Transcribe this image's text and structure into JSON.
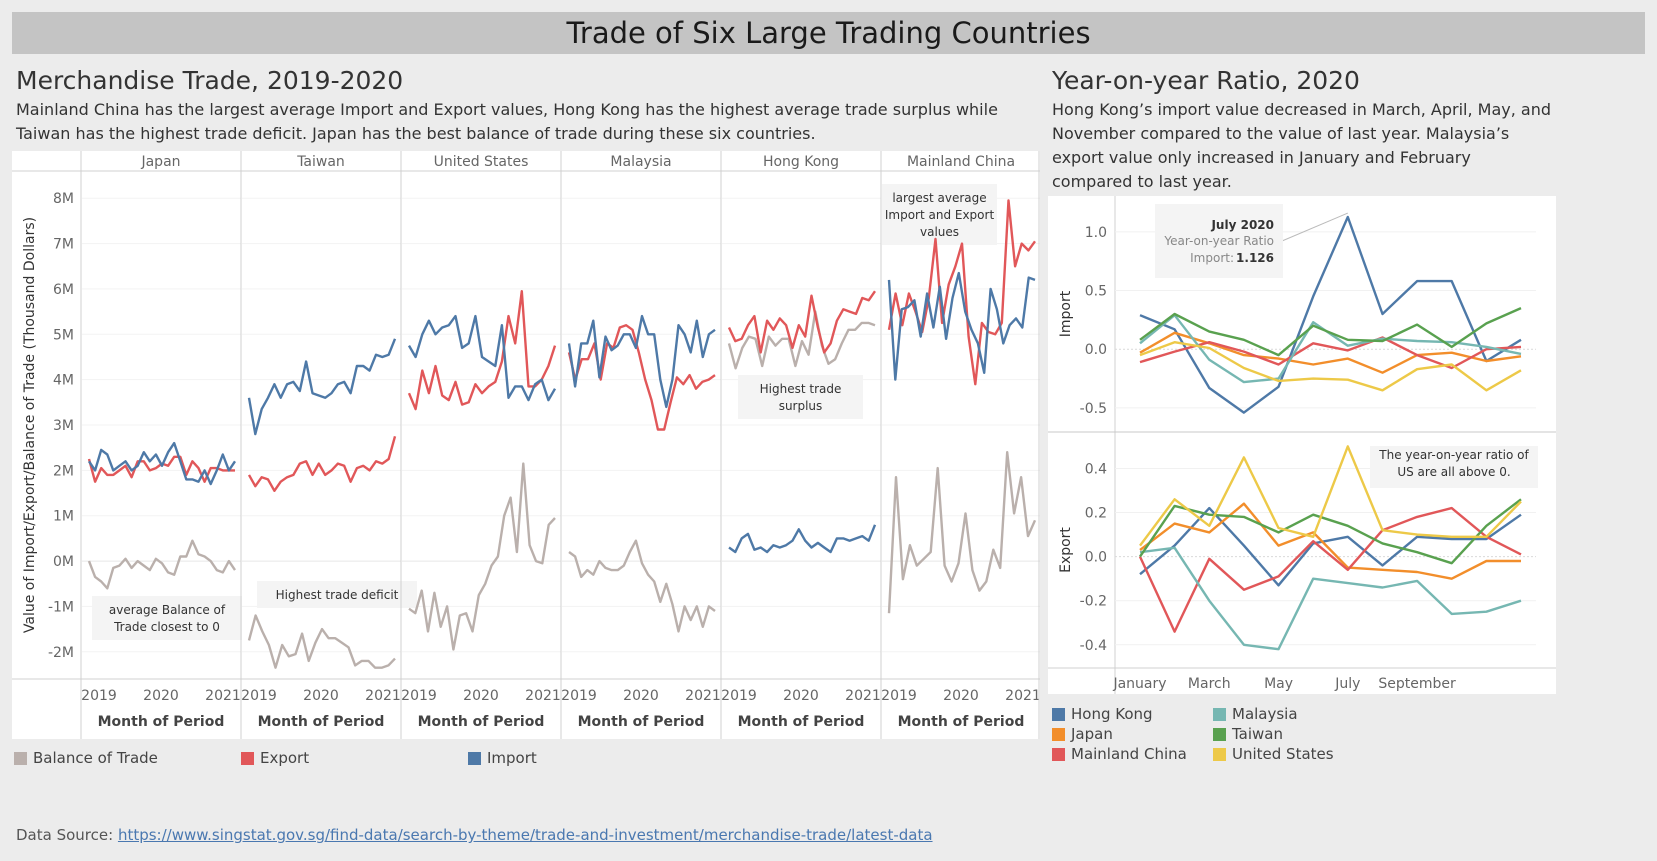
{
  "page": {
    "title": "Trade of Six Large Trading Countries",
    "left_title": "Merchandise Trade, 2019-2020",
    "left_desc": "Mainland China has the largest average Import and Export values, Hong Kong has the highest average trade surplus while Taiwan has the highest trade deficit. Japan has the best balance of trade during these six countries.",
    "right_title": "Year-on-year Ratio, 2020",
    "right_desc": "Hong Kong’s import value decreased in March, April, May, and November compared to the value of last year. Malaysia’s export value only increased in January and February compared to last year.",
    "source_label": "Data Source:",
    "source_url": "https://www.singstat.gov.sg/find-data/search-by-theme/trade-and-investment/merchandise-trade/latest-data"
  },
  "legend_left": [
    {
      "label": "Balance of Trade",
      "color": "#bab0ac"
    },
    {
      "label": "Export",
      "color": "#e15759"
    },
    {
      "label": "Import",
      "color": "#4e79a7"
    }
  ],
  "legend_right": [
    {
      "label": "Hong Kong",
      "color": "#4e79a7"
    },
    {
      "label": "Japan",
      "color": "#f28e2b"
    },
    {
      "label": "Mainland China",
      "color": "#e15759"
    },
    {
      "label": "Malaysia",
      "color": "#76b7b2"
    },
    {
      "label": "Taiwan",
      "color": "#59a14f"
    },
    {
      "label": "United States",
      "color": "#edc948"
    }
  ],
  "chart_data": [
    {
      "type": "line",
      "title": "Merchandise Trade, 2019-2020",
      "ylabel": "Value of Import/Export/Balance of Trade (Thousand Dollars)",
      "xlabel": "Month of Period",
      "ylim": [
        -2.6,
        8.6
      ],
      "yticks": [
        "8M",
        "7M",
        "6M",
        "5M",
        "4M",
        "3M",
        "2M",
        "1M",
        "0M",
        "-1M",
        "-2M"
      ],
      "ytick_values": [
        8,
        7,
        6,
        5,
        4,
        3,
        2,
        1,
        0,
        -1,
        -2
      ],
      "xticks": [
        "2019",
        "2020",
        "2021"
      ],
      "series_colors": {
        "Import": "#4e79a7",
        "Export": "#e15759",
        "Balance of Trade": "#bab0ac"
      },
      "panels": [
        {
          "name": "Japan",
          "annotation": "average Balance of Trade closest to 0",
          "Import": [
            2.2,
            2.0,
            2.45,
            2.35,
            2.0,
            2.1,
            2.2,
            2.0,
            2.1,
            2.4,
            2.2,
            2.35,
            2.1,
            2.4,
            2.6,
            2.2,
            1.8,
            1.8,
            1.75,
            2.0,
            1.7,
            2.0,
            2.35,
            2.0,
            2.2
          ],
          "Export": [
            2.25,
            1.75,
            2.05,
            1.9,
            1.9,
            2.0,
            2.1,
            1.85,
            2.2,
            2.2,
            2.0,
            2.05,
            2.15,
            2.1,
            2.3,
            2.3,
            1.9,
            2.2,
            2.05,
            1.75,
            2.05,
            2.05,
            2.0,
            2.0,
            2.0
          ],
          "Balance of Trade": [
            0.0,
            -0.35,
            -0.45,
            -0.6,
            -0.15,
            -0.1,
            0.05,
            -0.15,
            0.0,
            -0.1,
            -0.2,
            0.05,
            -0.05,
            -0.25,
            -0.3,
            0.1,
            0.1,
            0.45,
            0.15,
            0.1,
            0.0,
            -0.2,
            -0.25,
            0.0,
            -0.2
          ]
        },
        {
          "name": "Taiwan",
          "annotation": "Highest trade deficit",
          "Import": [
            3.6,
            2.8,
            3.35,
            3.6,
            3.9,
            3.6,
            3.9,
            3.95,
            3.75,
            4.4,
            3.7,
            3.65,
            3.6,
            3.7,
            3.9,
            3.95,
            3.7,
            4.3,
            4.3,
            4.2,
            4.55,
            4.5,
            4.55,
            4.9
          ],
          "Export": [
            1.9,
            1.65,
            1.85,
            1.8,
            1.55,
            1.75,
            1.85,
            1.9,
            2.15,
            2.2,
            1.9,
            2.15,
            1.9,
            2.0,
            2.15,
            2.1,
            1.75,
            2.05,
            2.1,
            2.0,
            2.2,
            2.15,
            2.25,
            2.75
          ],
          "Balance of Trade": [
            -1.75,
            -1.2,
            -1.55,
            -1.85,
            -2.35,
            -1.85,
            -2.1,
            -2.05,
            -1.6,
            -2.2,
            -1.8,
            -1.5,
            -1.7,
            -1.7,
            -1.8,
            -1.9,
            -2.3,
            -2.2,
            -2.2,
            -2.35,
            -2.35,
            -2.3,
            -2.15
          ]
        },
        {
          "name": "United States",
          "annotation": "",
          "Import": [
            4.75,
            4.5,
            5.0,
            5.3,
            5.0,
            5.15,
            5.2,
            5.4,
            4.7,
            4.8,
            5.4,
            4.5,
            4.4,
            4.3,
            5.2,
            3.6,
            3.85,
            3.85,
            3.55,
            3.9,
            4.0,
            3.55,
            3.8
          ],
          "Export": [
            3.7,
            3.35,
            4.2,
            3.7,
            4.3,
            3.65,
            3.55,
            3.95,
            3.45,
            3.5,
            3.9,
            3.7,
            3.85,
            3.95,
            4.4,
            5.4,
            4.8,
            5.95,
            3.85,
            3.85,
            4.0,
            4.3,
            4.75
          ],
          "Balance of Trade": [
            -1.05,
            -1.15,
            -0.65,
            -1.55,
            -0.7,
            -1.45,
            -1.0,
            -1.95,
            -1.2,
            -1.15,
            -1.55,
            -0.75,
            -0.5,
            -0.1,
            0.1,
            1.0,
            1.4,
            0.2,
            2.15,
            0.35,
            0.0,
            -0.05,
            0.8,
            0.95
          ]
        },
        {
          "name": "Malaysia",
          "annotation": "",
          "Import": [
            4.8,
            3.85,
            4.8,
            4.8,
            5.3,
            4.05,
            4.95,
            4.65,
            4.75,
            5.0,
            5.0,
            4.7,
            5.4,
            5.0,
            5.0,
            4.0,
            3.4,
            4.0,
            5.2,
            5.0,
            4.6,
            5.3,
            4.5,
            5.0,
            5.1
          ],
          "Export": [
            4.6,
            4.0,
            4.45,
            4.45,
            4.8,
            4.0,
            4.8,
            4.7,
            5.15,
            5.2,
            5.1,
            4.6,
            4.0,
            3.55,
            2.9,
            2.9,
            3.5,
            4.05,
            3.9,
            4.1,
            3.8,
            3.95,
            4.0,
            4.1
          ],
          "Balance of Trade": [
            0.2,
            0.1,
            -0.35,
            -0.2,
            -0.3,
            0.0,
            -0.15,
            -0.2,
            -0.2,
            -0.1,
            0.2,
            0.45,
            -0.05,
            -0.3,
            -0.45,
            -0.9,
            -0.5,
            -0.95,
            -1.55,
            -1.0,
            -1.3,
            -1.0,
            -1.45,
            -1.0,
            -1.1
          ]
        },
        {
          "name": "Hong Kong",
          "annotation": "Highest trade surplus",
          "Import": [
            0.3,
            0.2,
            0.5,
            0.6,
            0.25,
            0.3,
            0.2,
            0.35,
            0.3,
            0.35,
            0.45,
            0.7,
            0.45,
            0.3,
            0.4,
            0.3,
            0.2,
            0.5,
            0.5,
            0.45,
            0.5,
            0.55,
            0.45,
            0.8
          ],
          "Export": [
            5.15,
            4.85,
            4.9,
            5.2,
            5.4,
            4.6,
            5.3,
            5.1,
            5.35,
            5.2,
            4.7,
            5.2,
            4.95,
            5.85,
            5.15,
            4.6,
            4.8,
            5.3,
            5.55,
            5.5,
            5.45,
            5.8,
            5.75,
            5.95
          ],
          "Balance of Trade": [
            4.8,
            4.25,
            4.7,
            4.95,
            4.9,
            4.3,
            4.95,
            4.75,
            4.9,
            4.9,
            4.3,
            4.85,
            4.55,
            5.5,
            4.75,
            4.35,
            4.45,
            4.8,
            5.1,
            5.1,
            5.25,
            5.25,
            5.2
          ]
        },
        {
          "name": "Mainland China",
          "annotation": "largest average Import and Export values",
          "Import": [
            6.2,
            4.0,
            5.55,
            5.6,
            5.75,
            4.95,
            5.9,
            5.15,
            6.05,
            4.9,
            5.8,
            6.35,
            5.5,
            5.1,
            4.8,
            4.15,
            6.0,
            5.55,
            4.8,
            5.2,
            5.35,
            5.15,
            6.25,
            6.2
          ],
          "Export": [
            5.1,
            5.9,
            5.2,
            5.9,
            5.5,
            5.05,
            5.8,
            7.1,
            5.25,
            6.1,
            6.5,
            7.0,
            4.95,
            3.9,
            5.25,
            5.05,
            5.0,
            5.25,
            7.95,
            6.5,
            7.0,
            6.85,
            7.05
          ],
          "Balance of Trade": [
            -1.15,
            1.85,
            -0.4,
            0.35,
            -0.1,
            0.05,
            0.2,
            2.05,
            -0.1,
            -0.45,
            -0.05,
            1.05,
            -0.2,
            -0.65,
            -0.45,
            0.25,
            -0.15,
            2.4,
            1.05,
            1.85,
            0.55,
            0.9
          ]
        }
      ]
    },
    {
      "type": "line",
      "title": "Year-on-year Ratio, 2020",
      "x": [
        "January",
        "February",
        "March",
        "April",
        "May",
        "June",
        "July",
        "August",
        "September",
        "October",
        "November",
        "December"
      ],
      "xticks_shown": [
        "January",
        "March",
        "May",
        "July",
        "September"
      ],
      "tooltip": {
        "title": "July 2020",
        "subtitle": "Year-on-year Ratio",
        "label": "Import:",
        "value": "1.126"
      },
      "annotation": "The year-on-year ratio of US are all above 0.",
      "panels": [
        {
          "name": "Import",
          "ylim": [
            -0.62,
            1.22
          ],
          "yticks": [
            "1.0",
            "0.5",
            "0.0",
            "-0.5"
          ],
          "ytick_values": [
            1.0,
            0.5,
            0.0,
            -0.5
          ],
          "series": [
            {
              "name": "Hong Kong",
              "values": [
                0.29,
                0.17,
                -0.33,
                -0.54,
                -0.32,
                0.45,
                1.126,
                0.3,
                0.58,
                0.58,
                -0.1,
                0.08
              ]
            },
            {
              "name": "Japan",
              "values": [
                -0.03,
                0.14,
                0.05,
                -0.05,
                -0.08,
                -0.13,
                -0.08,
                -0.2,
                -0.05,
                -0.03,
                -0.1,
                -0.06
              ]
            },
            {
              "name": "Mainland China",
              "values": [
                -0.11,
                -0.02,
                0.06,
                -0.02,
                -0.13,
                0.05,
                -0.01,
                0.1,
                -0.05,
                -0.16,
                0.0,
                0.02
              ]
            },
            {
              "name": "Malaysia",
              "values": [
                0.05,
                0.29,
                -0.09,
                -0.28,
                -0.25,
                0.23,
                0.03,
                0.09,
                0.07,
                0.06,
                0.02,
                -0.04
              ]
            },
            {
              "name": "Taiwan",
              "values": [
                0.08,
                0.3,
                0.15,
                0.08,
                -0.05,
                0.2,
                0.08,
                0.07,
                0.21,
                0.02,
                0.22,
                0.35
              ]
            },
            {
              "name": "United States",
              "values": [
                -0.05,
                0.06,
                0.01,
                -0.16,
                -0.27,
                -0.25,
                -0.26,
                -0.35,
                -0.17,
                -0.13,
                -0.35,
                -0.18
              ]
            }
          ]
        },
        {
          "name": "Export",
          "ylim": [
            -0.46,
            0.52
          ],
          "yticks": [
            "0.4",
            "0.2",
            "0.0",
            "-0.2",
            "-0.4"
          ],
          "ytick_values": [
            0.4,
            0.2,
            0.0,
            -0.2,
            -0.4
          ],
          "series": [
            {
              "name": "Hong Kong",
              "values": [
                -0.08,
                0.05,
                0.22,
                0.05,
                -0.13,
                0.06,
                0.09,
                -0.04,
                0.09,
                0.08,
                0.08,
                0.19
              ]
            },
            {
              "name": "Japan",
              "values": [
                0.03,
                0.15,
                0.11,
                0.24,
                0.05,
                0.11,
                -0.05,
                -0.06,
                -0.07,
                -0.1,
                -0.02,
                -0.02
              ]
            },
            {
              "name": "Mainland China",
              "values": [
                0.0,
                -0.34,
                -0.01,
                -0.15,
                -0.09,
                0.07,
                -0.06,
                0.12,
                0.18,
                0.22,
                0.09,
                0.01
              ]
            },
            {
              "name": "Malaysia",
              "values": [
                0.02,
                0.04,
                -0.2,
                -0.4,
                -0.42,
                -0.1,
                -0.12,
                -0.14,
                -0.11,
                -0.26,
                -0.25,
                -0.2
              ]
            },
            {
              "name": "Taiwan",
              "values": [
                0.0,
                0.23,
                0.19,
                0.18,
                0.11,
                0.19,
                0.14,
                0.06,
                0.02,
                -0.03,
                0.14,
                0.26
              ]
            },
            {
              "name": "United States",
              "values": [
                0.05,
                0.26,
                0.14,
                0.45,
                0.13,
                0.09,
                0.5,
                0.12,
                0.1,
                0.09,
                0.09,
                0.25
              ]
            }
          ]
        }
      ]
    }
  ]
}
